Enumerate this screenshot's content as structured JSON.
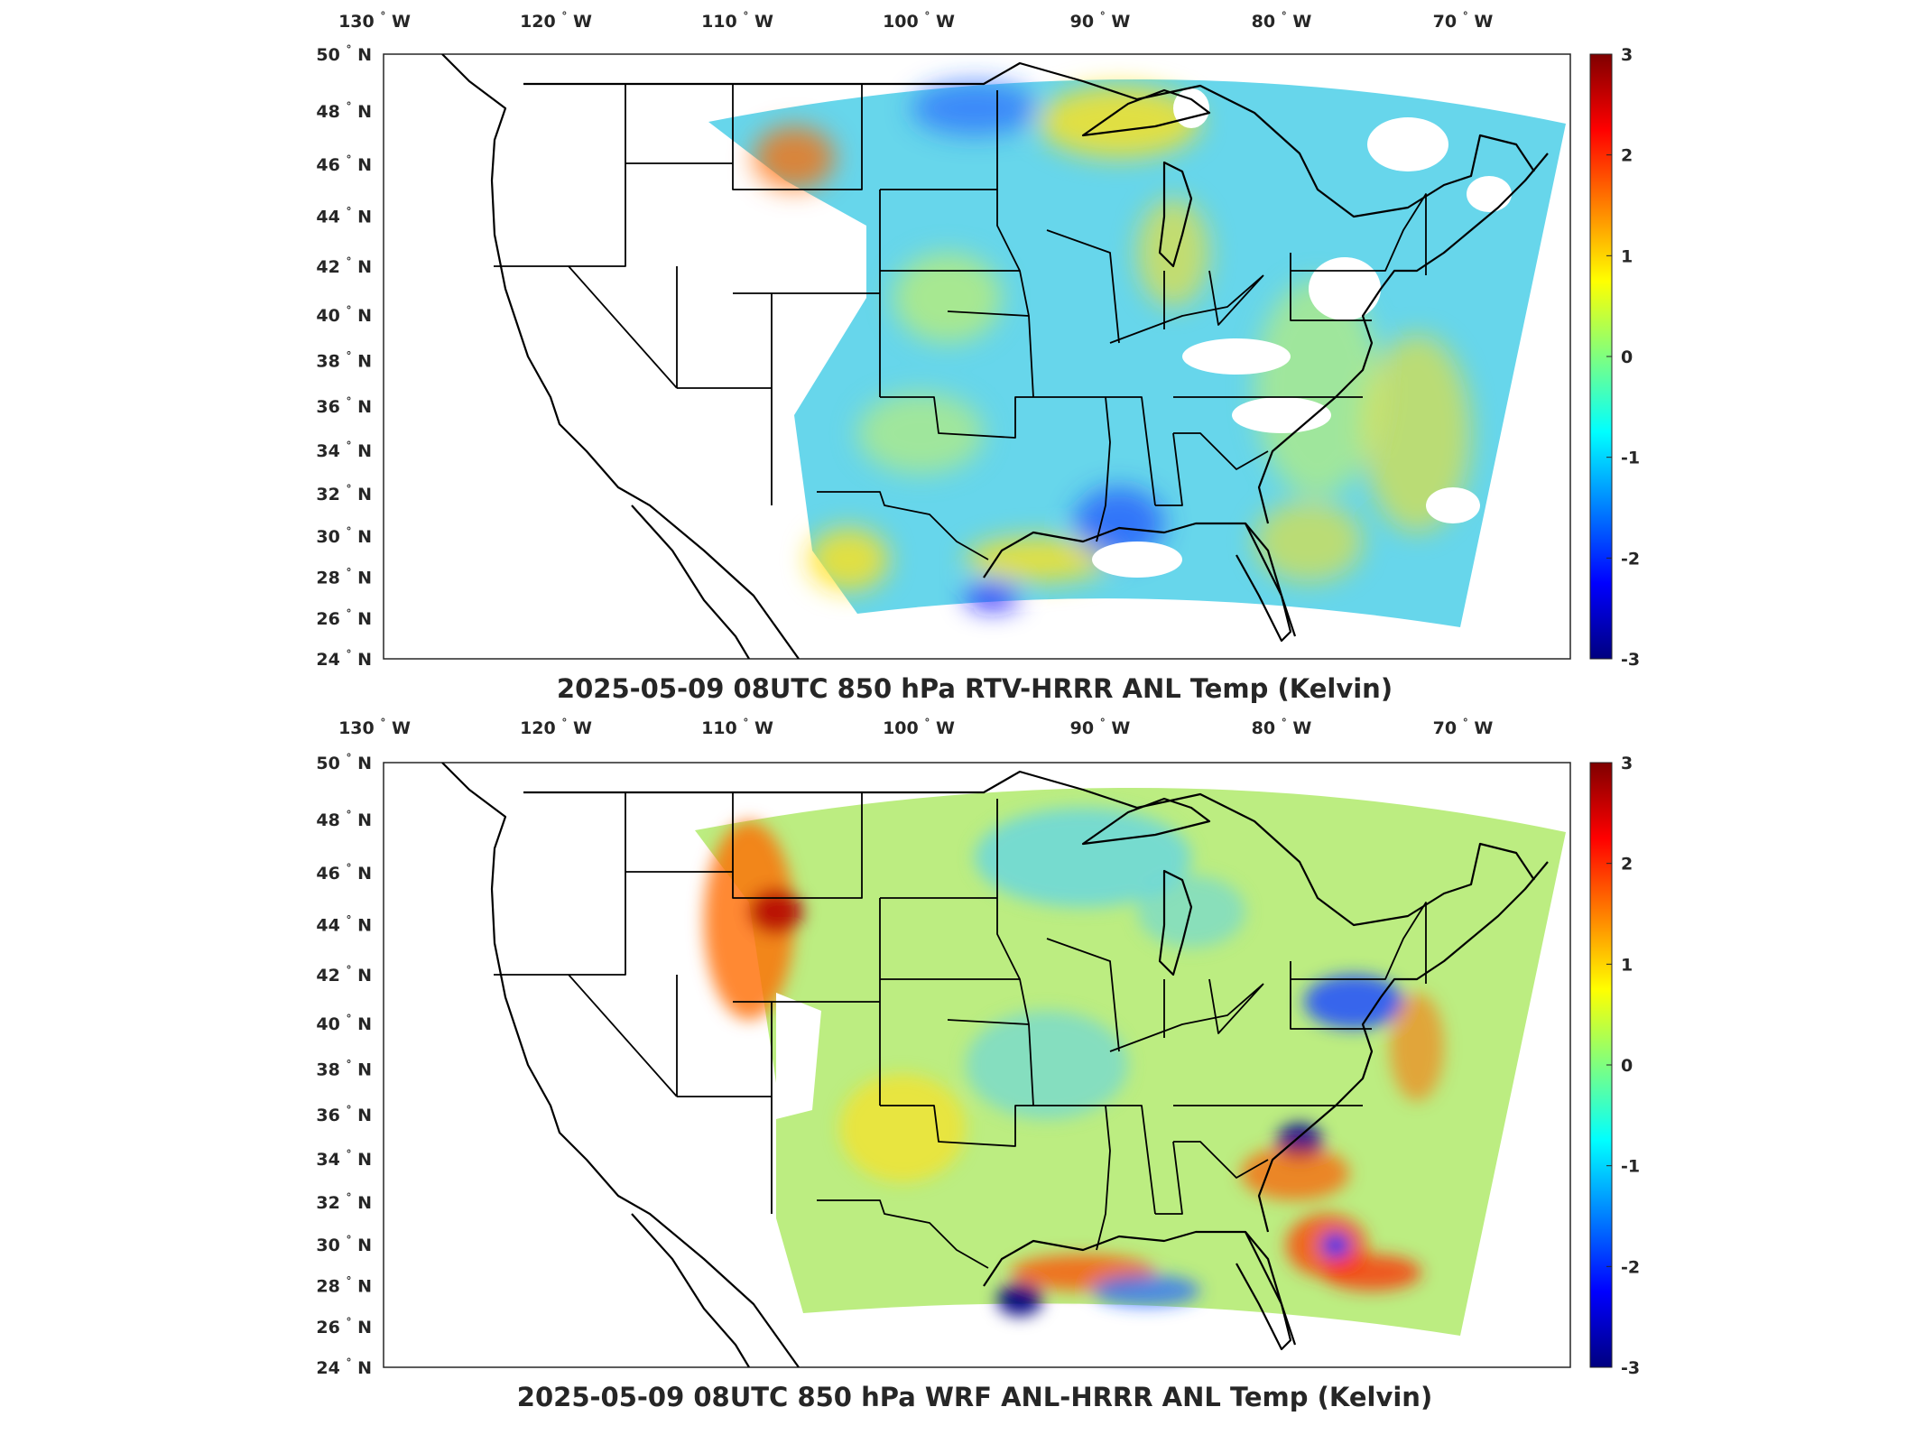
{
  "panels": [
    {
      "title": "2025-05-09 08UTC 850 hPa RTV-HRRR ANL Temp (Kelvin)",
      "longitude_ticks": [
        "130",
        "120",
        "110",
        "100",
        "90",
        "80",
        "70"
      ],
      "longitude_suffix": "W",
      "latitude_ticks": [
        "50",
        "48",
        "46",
        "44",
        "42",
        "40",
        "38",
        "36",
        "34",
        "32",
        "30",
        "28",
        "26",
        "24"
      ],
      "latitude_suffix": "N",
      "degree_symbol": "°",
      "colorbar_ticks": [
        "3",
        "2",
        "1",
        "0",
        "-1",
        "-2",
        "-3"
      ],
      "colorbar_range": [
        -3,
        3
      ]
    },
    {
      "title": "2025-05-09 08UTC 850 hPa WRF ANL-HRRR ANL Temp (Kelvin)",
      "longitude_ticks": [
        "130",
        "120",
        "110",
        "100",
        "90",
        "80",
        "70"
      ],
      "longitude_suffix": "W",
      "latitude_ticks": [
        "50",
        "48",
        "46",
        "44",
        "42",
        "40",
        "38",
        "36",
        "34",
        "32",
        "30",
        "28",
        "26",
        "24"
      ],
      "latitude_suffix": "N",
      "degree_symbol": "°",
      "colorbar_ticks": [
        "3",
        "2",
        "1",
        "0",
        "-1",
        "-2",
        "-3"
      ],
      "colorbar_range": [
        -3,
        3
      ]
    }
  ],
  "colormap": [
    "#00007f",
    "#0000ff",
    "#007fff",
    "#00ffff",
    "#7fff7f",
    "#ffff00",
    "#ff7f00",
    "#ff0000",
    "#7f0000"
  ],
  "colors": {
    "field_base": "#5fd4ea",
    "field_base_2": "#b8ec7a",
    "outline": "#000000"
  }
}
